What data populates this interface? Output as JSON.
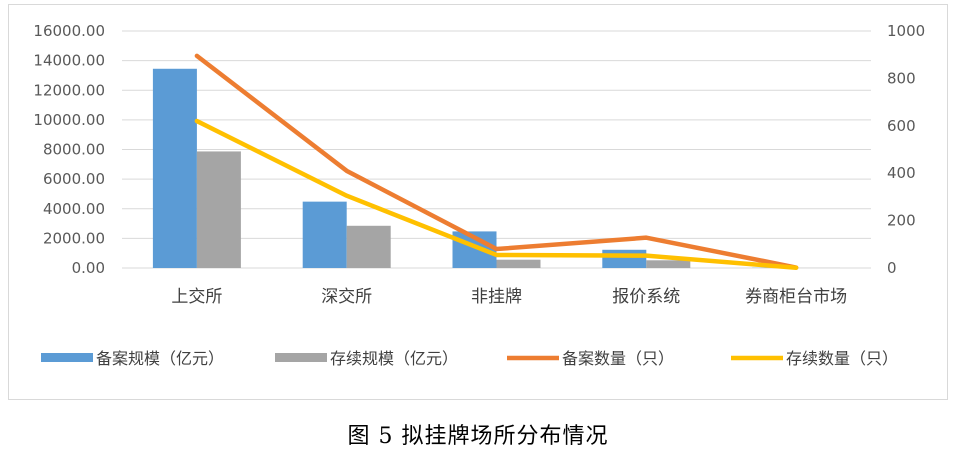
{
  "caption": "图 5 拟挂牌场所分布情况",
  "colors": {
    "bar_filed": "#5B9BD5",
    "bar_existing": "#A5A5A5",
    "line_filed": "#ED7D31",
    "line_existing": "#FFC000",
    "axis_text": "#595959",
    "grid": "#d9d9d9"
  },
  "chart_data": {
    "type": "bar",
    "categories": [
      "上交所",
      "深交所",
      "非挂牌",
      "报价系统",
      "券商柜台市场"
    ],
    "y_left": {
      "ylim": [
        0,
        16000
      ],
      "ticks": [
        "0.00",
        "2000.00",
        "4000.00",
        "6000.00",
        "8000.00",
        "10000.00",
        "12000.00",
        "14000.00",
        "16000.00"
      ]
    },
    "y_right": {
      "ylim": [
        0,
        1000
      ],
      "ticks": [
        "0",
        "200",
        "400",
        "600",
        "800",
        "1000"
      ]
    },
    "series": [
      {
        "name": "备案规模（亿元）",
        "type": "bar",
        "axis": "left",
        "values": [
          13450,
          4480,
          2470,
          1230,
          15
        ]
      },
      {
        "name": "存续规模（亿元）",
        "type": "bar",
        "axis": "left",
        "values": [
          7870,
          2850,
          560,
          520,
          5
        ]
      },
      {
        "name": "备案数量（只）",
        "type": "line",
        "axis": "right",
        "values": [
          895,
          410,
          80,
          128,
          2
        ]
      },
      {
        "name": "存续数量（只）",
        "type": "line",
        "axis": "right",
        "values": [
          620,
          305,
          55,
          52,
          1
        ]
      }
    ],
    "legend_position": "bottom",
    "grid": true
  }
}
